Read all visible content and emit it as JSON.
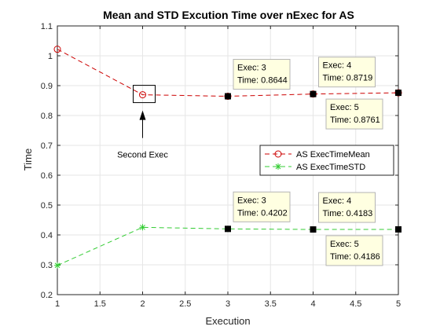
{
  "chart_data": {
    "type": "line",
    "title": "Mean and STD Excution Time over nExec for AS",
    "xlabel": "Execution",
    "ylabel": "Time",
    "xlim": [
      1,
      5
    ],
    "ylim": [
      0.2,
      1.1
    ],
    "xticks": [
      "1",
      "1.5",
      "2",
      "2.5",
      "3",
      "3.5",
      "4",
      "4.5",
      "5"
    ],
    "yticks": [
      "0.2",
      "0.3",
      "0.4",
      "0.5",
      "0.6",
      "0.7",
      "0.8",
      "0.9",
      "1",
      "1.1"
    ],
    "grid": true,
    "legend_position": "right",
    "series": [
      {
        "name": "AS ExecTimeMean",
        "color": "#cc0000",
        "marker": "circle",
        "x": [
          1,
          2,
          3,
          4,
          5
        ],
        "y": [
          1.022,
          0.8695,
          0.8644,
          0.8719,
          0.8761
        ]
      },
      {
        "name": "AS ExecTimeSTD",
        "color": "#33cc33",
        "marker": "star",
        "x": [
          1,
          2,
          3,
          4,
          5
        ],
        "y": [
          0.298,
          0.4255,
          0.4202,
          0.4183,
          0.4186
        ]
      }
    ],
    "datatips": [
      {
        "series": 0,
        "x": 3,
        "exec_label": "Exec: 3",
        "time_label": "Time: 0.8644"
      },
      {
        "series": 0,
        "x": 4,
        "exec_label": "Exec: 4",
        "time_label": "Time: 0.8719"
      },
      {
        "series": 0,
        "x": 5,
        "exec_label": "Exec: 5",
        "time_label": "Time: 0.8761"
      },
      {
        "series": 1,
        "x": 3,
        "exec_label": "Exec: 3",
        "time_label": "Time: 0.4202"
      },
      {
        "series": 1,
        "x": 4,
        "exec_label": "Exec: 4",
        "time_label": "Time: 0.4183"
      },
      {
        "series": 1,
        "x": 5,
        "exec_label": "Exec: 5",
        "time_label": "Time: 0.4186"
      }
    ],
    "annotation": {
      "text": "Second Exec",
      "target_series": 0,
      "target_x": 2
    },
    "colors": {
      "datatip_bg": "#ffffe1",
      "datatip_border": "#b4b4b4",
      "grid": "#e6e6e6",
      "axis": "#262626"
    }
  }
}
